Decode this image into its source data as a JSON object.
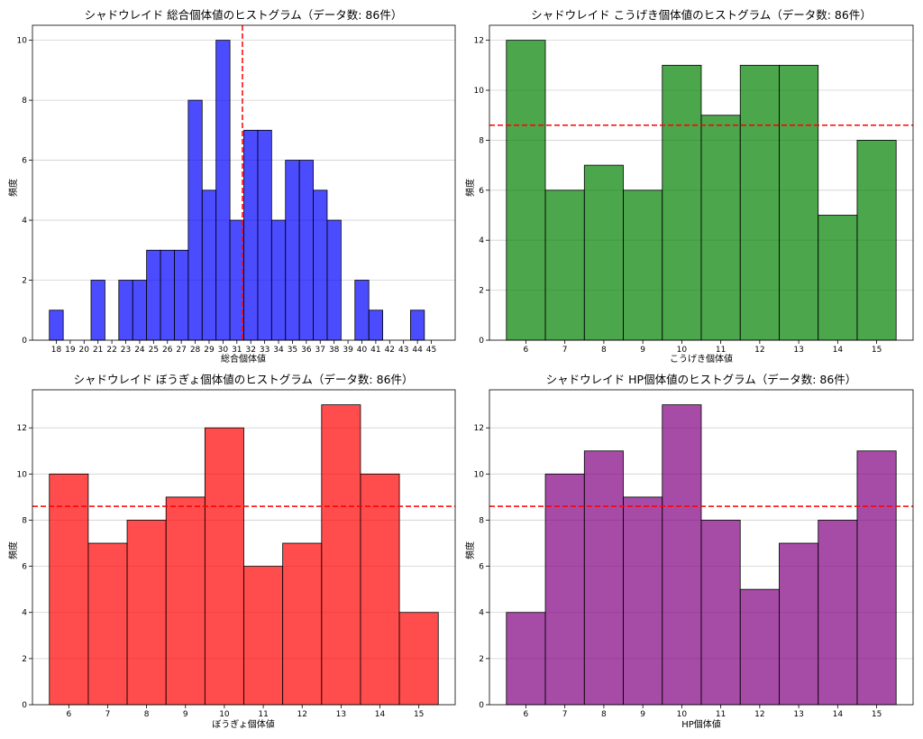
{
  "chart_data": [
    {
      "type": "bar",
      "title": "シャドウレイド 総合個体値のヒストグラム（データ数: 86件）",
      "xlabel": "総合個体値",
      "ylabel": "頻度",
      "color": "#0000ff",
      "categories": [
        18,
        19,
        20,
        21,
        22,
        23,
        24,
        25,
        26,
        27,
        28,
        29,
        30,
        31,
        32,
        33,
        34,
        35,
        36,
        37,
        38,
        39,
        40,
        41,
        42,
        43,
        44,
        45
      ],
      "values": [
        1,
        0,
        0,
        2,
        0,
        2,
        2,
        3,
        3,
        3,
        8,
        5,
        10,
        4,
        7,
        7,
        4,
        6,
        6,
        5,
        4,
        0,
        2,
        1,
        0,
        0,
        1,
        0
      ],
      "mean_line": 31.4,
      "mean_axis": "x",
      "ylim": [
        0,
        10.5
      ],
      "yticks": [
        0,
        2,
        4,
        6,
        8,
        10
      ],
      "grid": "y"
    },
    {
      "type": "bar",
      "title": "シャドウレイド こうげき個体値のヒストグラム（データ数: 86件）",
      "xlabel": "こうげき個体値",
      "ylabel": "頻度",
      "color": "#008000",
      "categories": [
        6,
        7,
        8,
        9,
        10,
        11,
        12,
        13,
        14,
        15
      ],
      "values": [
        12,
        6,
        7,
        6,
        11,
        9,
        11,
        11,
        5,
        8
      ],
      "mean_line": 8.6,
      "mean_axis": "y",
      "ylim": [
        0,
        12.6
      ],
      "yticks": [
        0,
        2,
        4,
        6,
        8,
        10,
        12
      ],
      "grid": "y"
    },
    {
      "type": "bar",
      "title": "シャドウレイド ぼうぎょ個体値のヒストグラム（データ数: 86件）",
      "xlabel": "ぼうぎょ個体値",
      "ylabel": "頻度",
      "color": "#ff0000",
      "categories": [
        6,
        7,
        8,
        9,
        10,
        11,
        12,
        13,
        14,
        15
      ],
      "values": [
        10,
        7,
        8,
        9,
        12,
        6,
        7,
        13,
        10,
        4
      ],
      "mean_line": 8.6,
      "mean_axis": "y",
      "ylim": [
        0,
        13.65
      ],
      "yticks": [
        0,
        2,
        4,
        6,
        8,
        10,
        12
      ],
      "grid": "y"
    },
    {
      "type": "bar",
      "title": "シャドウレイド HP個体値のヒストグラム（データ数: 86件）",
      "xlabel": "HP個体値",
      "ylabel": "頻度",
      "color": "#800080",
      "categories": [
        6,
        7,
        8,
        9,
        10,
        11,
        12,
        13,
        14,
        15
      ],
      "values": [
        4,
        10,
        11,
        9,
        13,
        8,
        5,
        7,
        8,
        11
      ],
      "mean_line": 8.6,
      "mean_axis": "y",
      "ylim": [
        0,
        13.65
      ],
      "yticks": [
        0,
        2,
        4,
        6,
        8,
        10,
        12
      ],
      "grid": "y"
    }
  ]
}
